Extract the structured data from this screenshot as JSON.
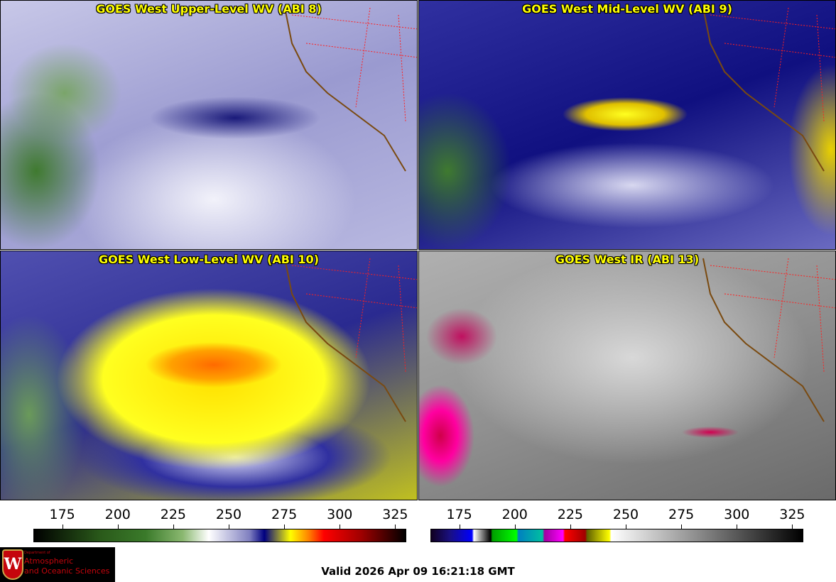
{
  "panels": [
    {
      "title": "GOES West Upper-Level WV (ABI 8)"
    },
    {
      "title": "GOES West Mid-Level WV (ABI 9)"
    },
    {
      "title": "GOES West Low-Level WV (ABI 10)"
    },
    {
      "title": "GOES West IR (ABI 13)"
    }
  ],
  "colorbars": [
    {
      "name": "water-vapor",
      "ticks": [
        "175",
        "200",
        "225",
        "250",
        "275",
        "300",
        "325"
      ],
      "range": [
        162,
        330
      ]
    },
    {
      "name": "infrared",
      "ticks": [
        "175",
        "200",
        "225",
        "250",
        "275",
        "300",
        "325"
      ],
      "range": [
        162,
        330
      ]
    }
  ],
  "logo": {
    "line1": "Department of",
    "line2": "Atmospheric",
    "line3": "and Oceanic Sciences",
    "shield_letter": "W"
  },
  "valid_time": "Valid 2026 Apr 09 16:21:18 GMT"
}
